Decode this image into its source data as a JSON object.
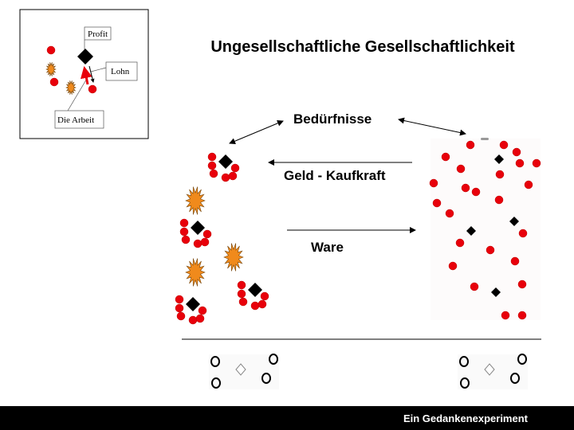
{
  "title": "Ungesellschaftliche Gesellschaftlichkeit",
  "labels": {
    "needs": "Bedürfnisse",
    "money": "Geld - Kaufkraft",
    "goods": "Ware"
  },
  "inset": {
    "profit": "Profit",
    "wage": "Lohn",
    "labor": "Die Arbeit"
  },
  "footer": "Ein Gedankenexperiment",
  "colors": {
    "worker": "#e8000b",
    "capital": "#000000",
    "conflict": "#f08a1c",
    "arrow_labor": "#e8000b"
  },
  "icons": {
    "worker": "red-dot-icon",
    "capitalist": "black-diamond-icon",
    "conflict": "explosion-icon",
    "empty_worker": "hollow-circle-icon",
    "empty_capitalist": "hollow-diamond-icon"
  }
}
